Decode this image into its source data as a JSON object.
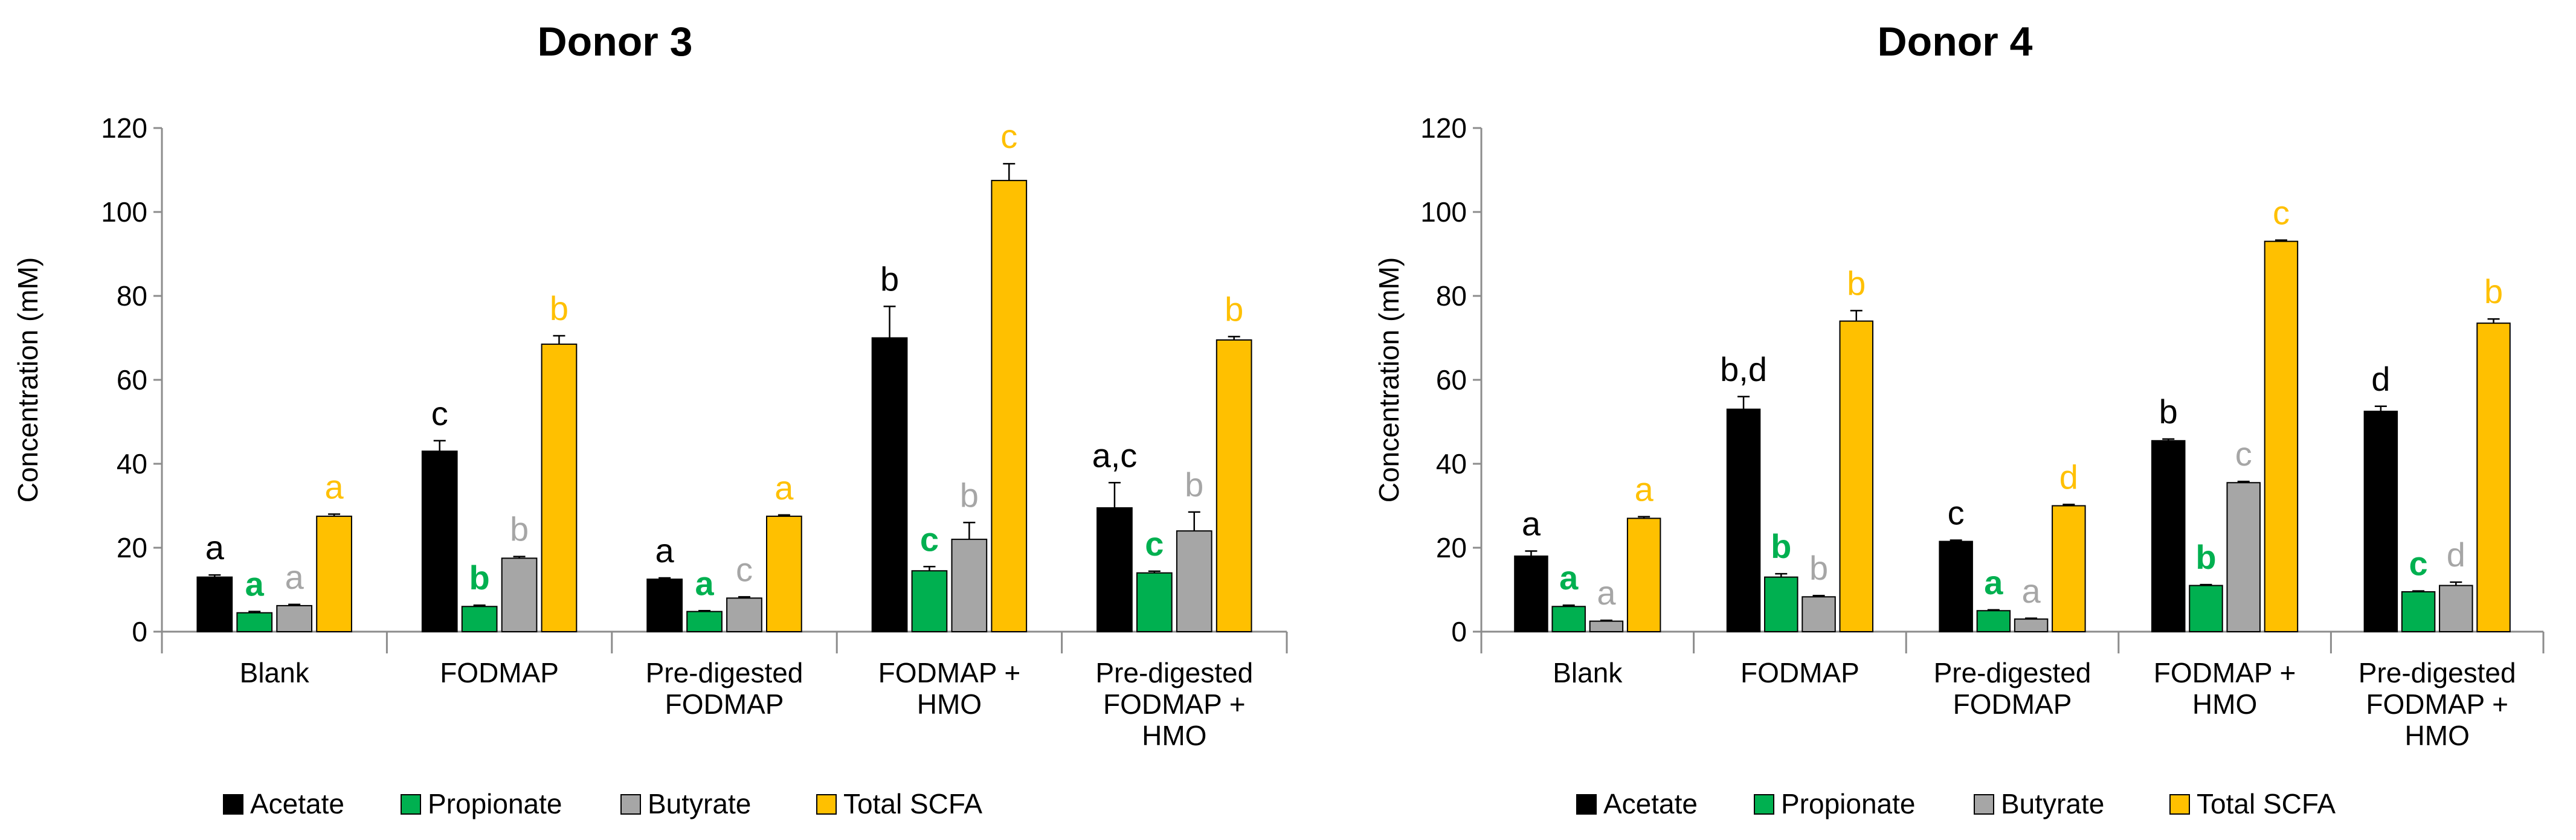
{
  "chart_data": [
    {
      "type": "bar",
      "title": "Donor 3",
      "xlabel": "",
      "ylabel": "Concentration (mM)",
      "ylim": [
        0,
        120
      ],
      "yticks": [
        0,
        20,
        40,
        60,
        80,
        100,
        120
      ],
      "categories": [
        [
          "Blank"
        ],
        [
          "FODMAP"
        ],
        [
          "Pre-digested",
          "FODMAP"
        ],
        [
          "FODMAP +",
          "HMO"
        ],
        [
          "Pre-digested",
          "FODMAP +",
          "HMO"
        ]
      ],
      "series": [
        {
          "name": "Acetate",
          "color": "#000000",
          "values": [
            13,
            43,
            12.5,
            70,
            29.5
          ],
          "errors": [
            0.5,
            2.5,
            0.3,
            7.5,
            6
          ],
          "labels": [
            "a",
            "c",
            "a",
            "b",
            "a,c"
          ],
          "label_color": "#000000"
        },
        {
          "name": "Propionate",
          "color": "#00B050",
          "values": [
            4.5,
            6,
            4.8,
            14.5,
            14
          ],
          "errors": [
            0.3,
            0.3,
            0.2,
            1,
            0.4
          ],
          "labels": [
            "a",
            "b",
            "a",
            "c",
            "c"
          ],
          "label_color": "#00B050"
        },
        {
          "name": "Butyrate",
          "color": "#A6A6A6",
          "values": [
            6.2,
            17.5,
            8,
            22,
            24
          ],
          "errors": [
            0.3,
            0.4,
            0.3,
            4,
            4.5
          ],
          "labels": [
            "a",
            "b",
            "c",
            "b",
            "b"
          ],
          "label_color": "#A6A6A6"
        },
        {
          "name": "Total SCFA",
          "color": "#FFC000",
          "values": [
            27.5,
            68.5,
            27.5,
            107.5,
            69.5
          ],
          "errors": [
            0.5,
            2,
            0.3,
            4,
            0.8
          ],
          "labels": [
            "a",
            "b",
            "a",
            "c",
            "b"
          ],
          "label_color": "#FFC000"
        }
      ],
      "legend_position": "bottom"
    },
    {
      "type": "bar",
      "title": "Donor 4",
      "xlabel": "",
      "ylabel": "Concentration (mM)",
      "ylim": [
        0,
        120
      ],
      "yticks": [
        0,
        20,
        40,
        60,
        80,
        100,
        120
      ],
      "categories": [
        [
          "Blank"
        ],
        [
          "FODMAP"
        ],
        [
          "Pre-digested",
          "FODMAP"
        ],
        [
          "FODMAP +",
          "HMO"
        ],
        [
          "Pre-digested",
          "FODMAP +",
          "HMO"
        ]
      ],
      "series": [
        {
          "name": "Acetate",
          "color": "#000000",
          "values": [
            18,
            53,
            21.5,
            45.5,
            52.5
          ],
          "errors": [
            1.2,
            3,
            0.3,
            0.4,
            1.2
          ],
          "labels": [
            "a",
            "b,d",
            "c",
            "b",
            "d"
          ],
          "label_color": "#000000"
        },
        {
          "name": "Propionate",
          "color": "#00B050",
          "values": [
            6,
            13,
            5,
            11,
            9.5
          ],
          "errors": [
            0.3,
            0.8,
            0.2,
            0.2,
            0.2
          ],
          "labels": [
            "a",
            "b",
            "a",
            "b",
            "c"
          ],
          "label_color": "#00B050"
        },
        {
          "name": "Butyrate",
          "color": "#A6A6A6",
          "values": [
            2.5,
            8.3,
            3,
            35.5,
            11
          ],
          "errors": [
            0.2,
            0.3,
            0.2,
            0.3,
            0.8
          ],
          "labels": [
            "a",
            "b",
            "a",
            "c",
            "d"
          ],
          "label_color": "#A6A6A6"
        },
        {
          "name": "Total SCFA",
          "color": "#FFC000",
          "values": [
            27,
            74,
            30,
            93,
            73.5
          ],
          "errors": [
            0.4,
            2.5,
            0.3,
            0.3,
            1
          ],
          "labels": [
            "a",
            "b",
            "d",
            "c",
            "b"
          ],
          "label_color": "#FFC000"
        }
      ],
      "legend_position": "bottom"
    }
  ]
}
